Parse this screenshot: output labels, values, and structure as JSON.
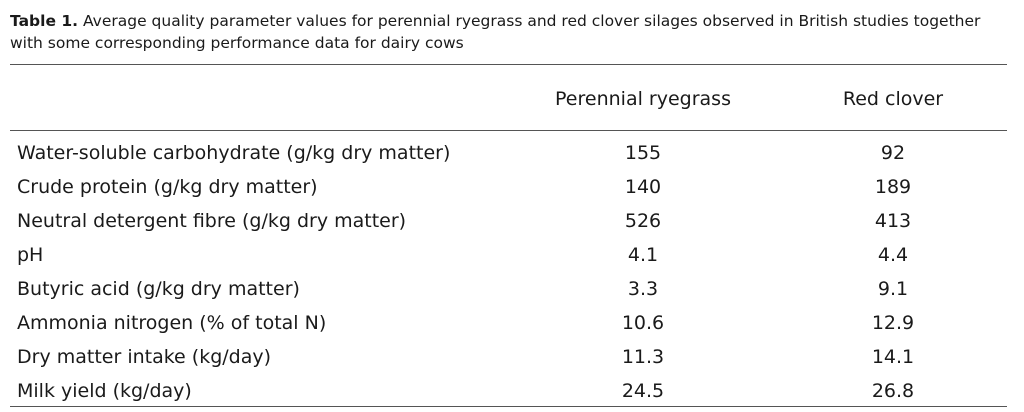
{
  "caption": {
    "label": "Table 1.",
    "text": " Average quality parameter values for perennial ryegrass and red clover silages observed in British studies together with some corresponding performance data for dairy cows"
  },
  "table": {
    "columns": [
      "",
      "Perennial ryegrass",
      "Red clover"
    ],
    "rows": [
      {
        "label": "Water-soluble carbohydrate (g/kg dry matter)",
        "ryegrass": "155",
        "clover": "92"
      },
      {
        "label": "Crude protein (g/kg dry matter)",
        "ryegrass": "140",
        "clover": "189"
      },
      {
        "label": "Neutral detergent fibre (g/kg dry matter)",
        "ryegrass": "526",
        "clover": "413"
      },
      {
        "label": "pH",
        "ryegrass": "4.1",
        "clover": "4.4"
      },
      {
        "label": "Butyric acid (g/kg dry matter)",
        "ryegrass": "3.3",
        "clover": "9.1"
      },
      {
        "label": "Ammonia nitrogen (% of total N)",
        "ryegrass": "10.6",
        "clover": "12.9"
      },
      {
        "label": "Dry matter intake (kg/day)",
        "ryegrass": "11.3",
        "clover": "14.1"
      },
      {
        "label": "Milk yield (kg/day)",
        "ryegrass": "24.5",
        "clover": "26.8"
      }
    ]
  }
}
